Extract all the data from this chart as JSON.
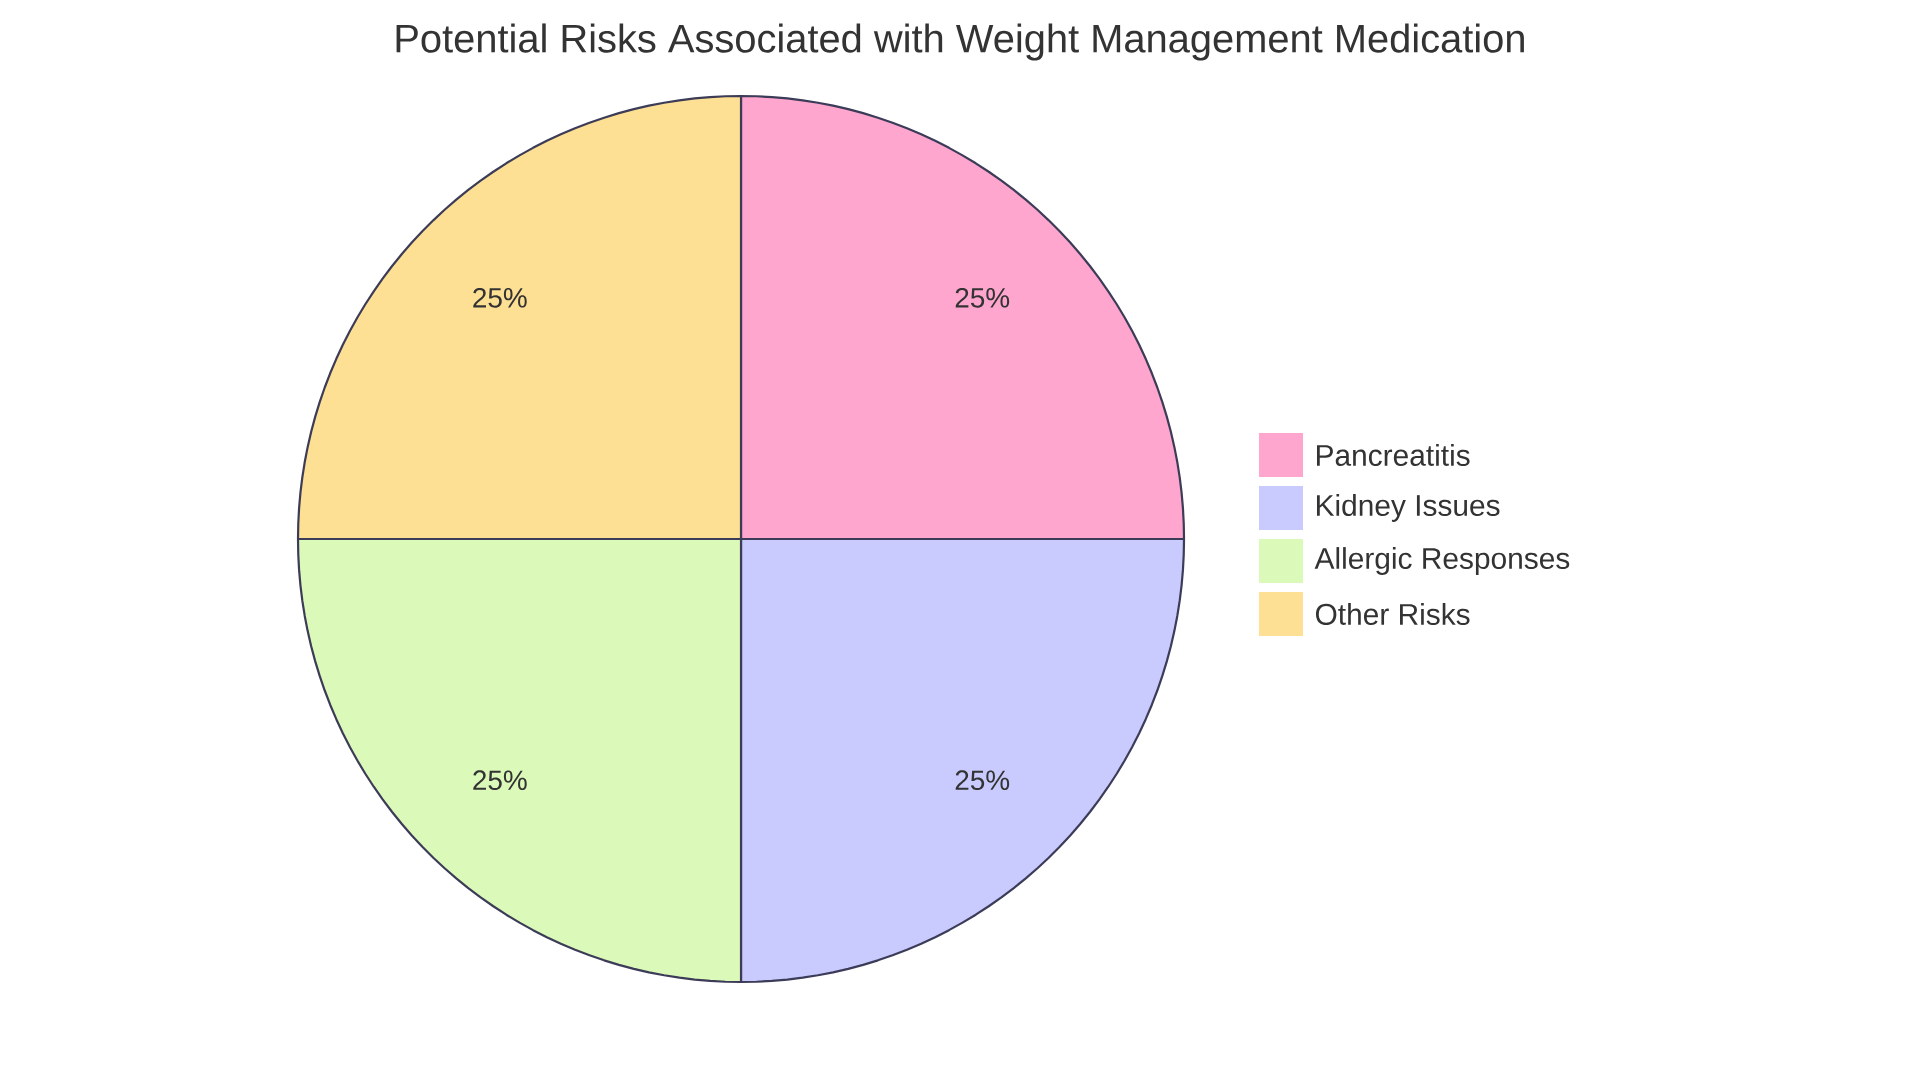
{
  "chart_data": {
    "type": "pie",
    "title": "Potential Risks Associated with Weight Management Medication",
    "categories": [
      "Pancreatitis",
      "Kidney Issues",
      "Allergic Responses",
      "Other Risks"
    ],
    "values": [
      25,
      25,
      25,
      25
    ],
    "colors": [
      "#ffa6cf",
      "#c9cbff",
      "#dbf9b9",
      "#fde093"
    ],
    "value_labels": [
      "25%",
      "25%",
      "25%",
      "25%"
    ],
    "legend": "right"
  }
}
